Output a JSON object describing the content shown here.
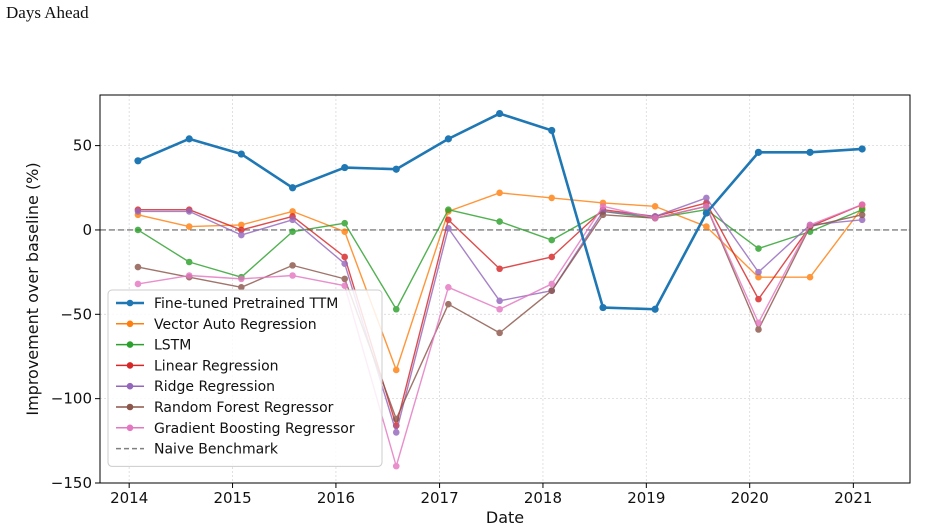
{
  "caption": "Days Ahead",
  "colors": {
    "grid": "#d9d9d9",
    "axis": "#000000",
    "zero_line": "#7f7f7f"
  },
  "chart_data": {
    "type": "line",
    "title": "",
    "xlabel": "Date",
    "ylabel": "Improvement over baseline (%)",
    "xlim": [
      "2013-09-20",
      "2021-07-20"
    ],
    "ylim": [
      -150,
      80
    ],
    "xticks": [
      "2014",
      "2015",
      "2016",
      "2017",
      "2018",
      "2019",
      "2020",
      "2021"
    ],
    "xtick_dates": [
      "2014-01-01",
      "2015-01-01",
      "2016-01-01",
      "2017-01-01",
      "2018-01-01",
      "2019-01-01",
      "2020-01-01",
      "2021-01-01"
    ],
    "yticks": [
      50,
      0,
      -50,
      -100,
      -150
    ],
    "ytick_labels": [
      "50",
      "0",
      "−50",
      "−100",
      "−150"
    ],
    "grid": true,
    "legend_position": "lower-left",
    "x": [
      "2014-02-01",
      "2014-08-01",
      "2015-02-01",
      "2015-08-01",
      "2016-02-01",
      "2016-08-01",
      "2017-02-01",
      "2017-08-01",
      "2018-02-01",
      "2018-08-01",
      "2019-02-01",
      "2019-08-01",
      "2020-02-01",
      "2020-08-01",
      "2021-02-01"
    ],
    "series": [
      {
        "name": "Fine-tuned Pretrained TTM",
        "color": "#1f77b4",
        "emphasis": true,
        "values": [
          41,
          54,
          45,
          25,
          37,
          36,
          54,
          69,
          59,
          -46,
          -47,
          10,
          46,
          46,
          48
        ]
      },
      {
        "name": "Vector Auto Regression",
        "color": "#ff7f0e",
        "values": [
          9,
          2,
          3,
          11,
          -1,
          -83,
          11,
          22,
          19,
          16,
          14,
          2,
          -28,
          -28,
          13
        ]
      },
      {
        "name": "LSTM",
        "color": "#2ca02c",
        "values": [
          0,
          -19,
          -28,
          -1,
          4,
          -47,
          12,
          5,
          -6,
          11,
          7,
          12,
          -11,
          -1,
          12
        ]
      },
      {
        "name": "Linear Regression",
        "color": "#d62728",
        "values": [
          12,
          12,
          0,
          8,
          -16,
          -116,
          6,
          -23,
          -16,
          12,
          8,
          16,
          -41,
          2,
          15
        ]
      },
      {
        "name": "Ridge Regression",
        "color": "#9467bd",
        "values": [
          11,
          11,
          -3,
          6,
          -20,
          -120,
          1,
          -42,
          -36,
          11,
          8,
          19,
          -25,
          3,
          6
        ]
      },
      {
        "name": "Random Forest Regressor",
        "color": "#8c564b",
        "values": [
          -22,
          -28,
          -34,
          -21,
          -29,
          -112,
          -44,
          -61,
          -36,
          9,
          7,
          14,
          -59,
          2,
          9
        ]
      },
      {
        "name": "Gradient Boosting Regressor",
        "color": "#e377c2",
        "values": [
          -32,
          -27,
          -29,
          -27,
          -33,
          -140,
          -34,
          -47,
          -32,
          14,
          7,
          14,
          -55,
          3,
          15
        ]
      }
    ],
    "reference_line": {
      "name": "Naive Benchmark",
      "value": 0,
      "color": "#7f7f7f",
      "style": "dashed"
    }
  }
}
